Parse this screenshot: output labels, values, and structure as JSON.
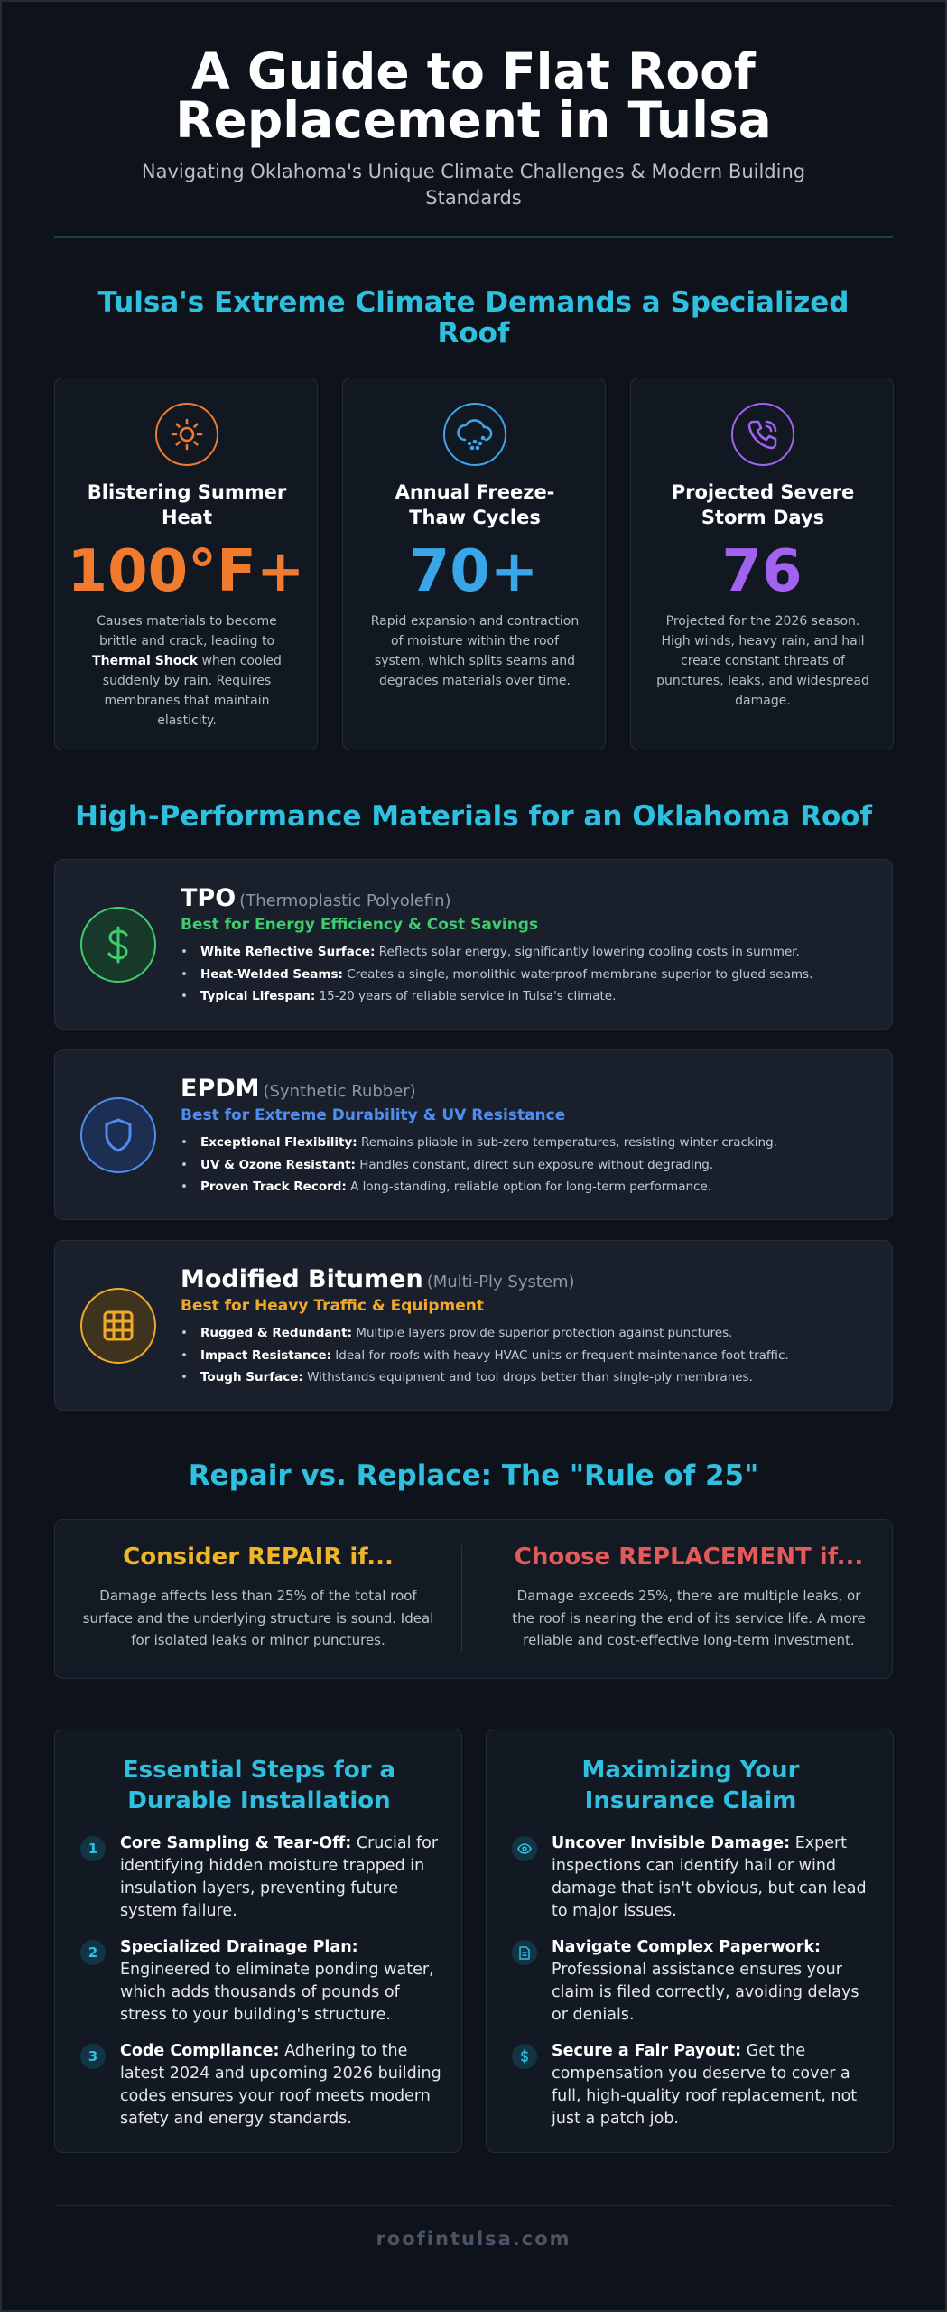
{
  "header": {
    "title_line1": "A Guide to Flat Roof",
    "title_line2": "Replacement in Tulsa",
    "subtitle_line1": "Navigating Oklahoma's Unique Climate Challenges & Modern Building",
    "subtitle_line2": "Standards"
  },
  "climate": {
    "title_line1": "Tulsa's Extreme Climate Demands a Specialized",
    "title_line2": "Roof",
    "cards": [
      {
        "icon": "sun-icon",
        "color": "#f07a2e",
        "title_line1": "Blistering Summer",
        "title_line2": "Heat",
        "number": "100°F+",
        "desc_before": "Causes materials to become brittle and crack, leading to",
        "desc_bold": "Thermal Shock",
        "desc_after": "when cooled suddenly by rain. Requires membranes that maintain elasticity."
      },
      {
        "icon": "cloud-snow-icon",
        "color": "#3aa6ea",
        "title_line1": "Annual Freeze-",
        "title_line2": "Thaw Cycles",
        "number": "70+",
        "desc": "Rapid expansion and contraction of moisture within the roof system, which splits seams and degrades materials over time."
      },
      {
        "icon": "phone-alert-icon",
        "color": "#a262f0",
        "title_line1": "Projected Severe",
        "title_line2": "Storm Days",
        "number": "76",
        "desc": "Projected for the 2026 season. High winds, heavy rain, and hail create constant threats of punctures, leaks, and widespread damage."
      }
    ]
  },
  "materials": {
    "title": "High-Performance Materials for an Oklahoma Roof",
    "items": [
      {
        "icon": "dollar-icon",
        "color": "#3fcc6e",
        "name": "TPO",
        "sub": "(Thermoplastic Polyolefin)",
        "best": "Best for Energy Efficiency & Cost Savings",
        "points": [
          {
            "b": "White Reflective Surface:",
            "t": "Reflects solar energy, significantly lowering cooling costs in summer."
          },
          {
            "b": "Heat-Welded Seams:",
            "t": "Creates a single, monolithic waterproof membrane superior to glued seams."
          },
          {
            "b": "Typical Lifespan:",
            "t": "15-20 years of reliable service in Tulsa's climate."
          }
        ]
      },
      {
        "icon": "shield-icon",
        "color": "#4f8ef0",
        "name": "EPDM",
        "sub": "(Synthetic Rubber)",
        "best": "Best for Extreme Durability & UV Resistance",
        "points": [
          {
            "b": "Exceptional Flexibility:",
            "t": "Remains pliable in sub-zero temperatures, resisting winter cracking."
          },
          {
            "b": "UV & Ozone Resistant:",
            "t": "Handles constant, direct sun exposure without degrading."
          },
          {
            "b": "Proven Track Record:",
            "t": "A long-standing, reliable option for long-term performance."
          }
        ]
      },
      {
        "icon": "grid-icon",
        "color": "#f0a92a",
        "name": "Modified Bitumen",
        "sub": "(Multi-Ply System)",
        "best": "Best for Heavy Traffic & Equipment",
        "points": [
          {
            "b": "Rugged & Redundant:",
            "t": "Multiple layers provide superior protection against punctures."
          },
          {
            "b": "Impact Resistance:",
            "t": "Ideal for roofs with heavy HVAC units or frequent maintenance foot traffic."
          },
          {
            "b": "Tough Surface:",
            "t": "Withstands equipment and tool drops better than single-ply membranes."
          }
        ]
      }
    ]
  },
  "repair_replace": {
    "title": "Repair vs. Replace: The \"Rule of 25\"",
    "repair_title": "Consider REPAIR if...",
    "repair_color": "#f0b429",
    "repair_text": "Damage affects less than 25% of the total roof surface and the underlying structure is sound. Ideal for isolated leaks or minor punctures.",
    "replace_title": "Choose REPLACEMENT if...",
    "replace_color": "#e35a5a",
    "replace_text": "Damage exceeds 25%, there are multiple leaks, or the roof is nearing the end of its service life. A more reliable and cost-effective long-term investment."
  },
  "steps": {
    "title_line1": "Essential Steps for a",
    "title_line2": "Durable Installation",
    "items": [
      {
        "n": "1",
        "b": "Core Sampling & Tear-Off:",
        "t": "Crucial for identifying hidden moisture trapped in insulation layers, preventing future system failure."
      },
      {
        "n": "2",
        "b": "Specialized Drainage Plan:",
        "t": "Engineered to eliminate ponding water, which adds thousands of pounds of stress to your building's structure."
      },
      {
        "n": "3",
        "b": "Code Compliance:",
        "t": "Adhering to the latest 2024 and upcoming 2026 building codes ensures your roof meets modern safety and energy standards."
      }
    ]
  },
  "insurance": {
    "title_line1": "Maximizing Your",
    "title_line2": "Insurance Claim",
    "items": [
      {
        "icon": "eye-icon",
        "b": "Uncover Invisible Damage:",
        "t": "Expert inspections can identify hail or wind damage that isn't obvious, but can lead to major issues."
      },
      {
        "icon": "document-icon",
        "b": "Navigate Complex Paperwork:",
        "t": "Professional assistance ensures your claim is filed correctly, avoiding delays or denials."
      },
      {
        "icon": "dollar-icon",
        "b": "Secure a Fair Payout:",
        "t": "Get the compensation you deserve to cover a full, high-quality roof replacement, not just a patch job."
      }
    ]
  },
  "footer": {
    "site": "roofintulsa.com"
  },
  "colors": {
    "accent": "#2fc0e0",
    "background": "#0d121b"
  }
}
